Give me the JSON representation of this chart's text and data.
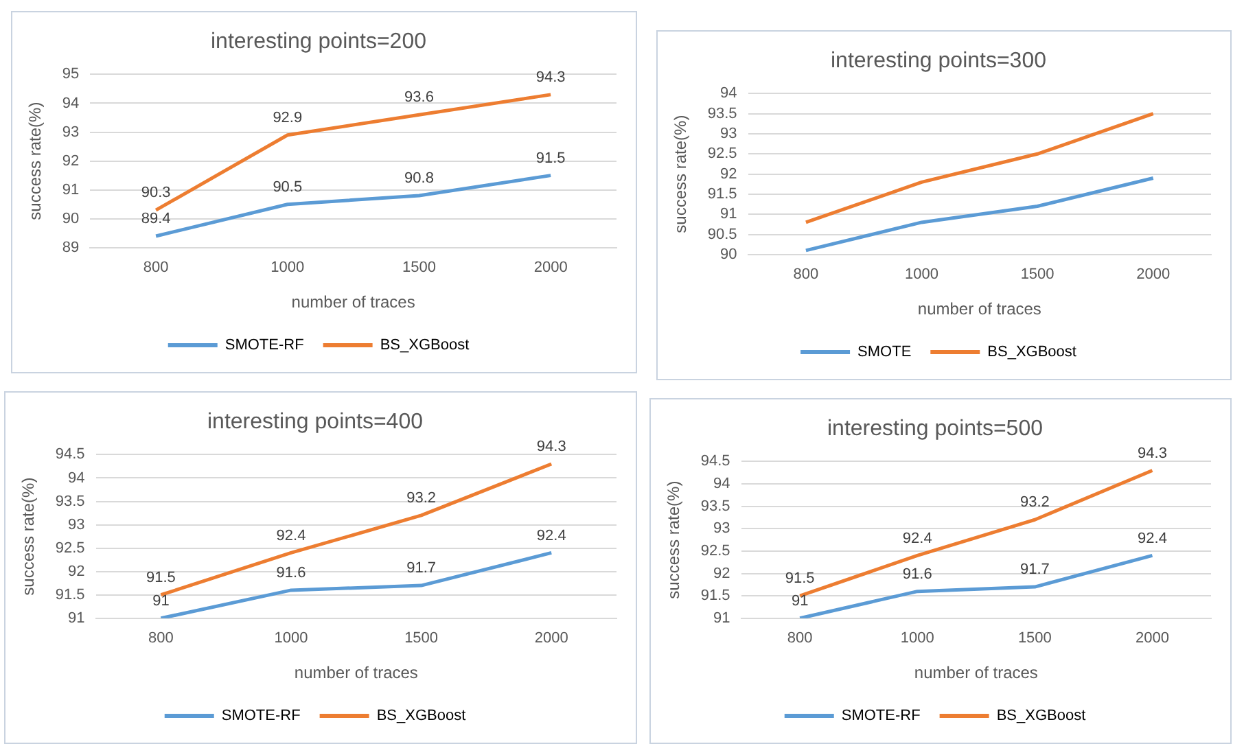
{
  "chart_data": [
    {
      "type": "line",
      "title": "interesting points=200",
      "xlabel": "number of traces",
      "ylabel": "success rate(%)",
      "categories": [
        "800",
        "1000",
        "1500",
        "2000"
      ],
      "ylim": [
        89,
        95
      ],
      "yticks": [
        89,
        90,
        91,
        92,
        93,
        94,
        95
      ],
      "grid": "y",
      "legend": "bottom",
      "marker": "none",
      "data_labels": true,
      "series": [
        {
          "name": "SMOTE-RF",
          "color": "#5b9bd5",
          "values": [
            89.4,
            90.5,
            90.8,
            91.5
          ]
        },
        {
          "name": "BS_XGBoost",
          "color": "#ed7d31",
          "values": [
            90.3,
            92.9,
            93.6,
            94.3
          ]
        }
      ]
    },
    {
      "type": "line",
      "title": "interesting points=300",
      "xlabel": "number of traces",
      "ylabel": "success rate(%)",
      "categories": [
        "800",
        "1000",
        "1500",
        "2000"
      ],
      "ylim": [
        90,
        94
      ],
      "yticks": [
        90,
        90.5,
        91,
        91.5,
        92,
        92.5,
        93,
        93.5,
        94
      ],
      "grid": "y",
      "legend": "bottom",
      "marker": "none",
      "series": [
        {
          "name": "SMOTE",
          "color": "#5b9bd5",
          "values": [
            90.1,
            90.8,
            91.2,
            91.9
          ]
        },
        {
          "name": "BS_XGBoost",
          "color": "#ed7d31",
          "values": [
            90.8,
            91.8,
            92.5,
            93.5
          ]
        }
      ]
    },
    {
      "type": "line",
      "title": "interesting points=400",
      "xlabel": "number of traces",
      "ylabel": "success rate(%)",
      "categories": [
        "800",
        "1000",
        "1500",
        "2000"
      ],
      "ylim": [
        91,
        94.5
      ],
      "yticks": [
        91,
        91.5,
        92,
        92.5,
        93,
        93.5,
        94,
        94.5
      ],
      "grid": "y",
      "legend": "bottom",
      "marker": "none",
      "data_labels": true,
      "series": [
        {
          "name": "SMOTE-RF",
          "color": "#5b9bd5",
          "values": [
            91,
            91.6,
            91.7,
            92.4
          ]
        },
        {
          "name": "BS_XGBoost",
          "color": "#ed7d31",
          "values": [
            91.5,
            92.4,
            93.2,
            94.3
          ]
        }
      ]
    },
    {
      "type": "line",
      "title": "interesting points=500",
      "xlabel": "number of traces",
      "ylabel": "success rate(%)",
      "categories": [
        "800",
        "1000",
        "1500",
        "2000"
      ],
      "ylim": [
        91,
        94.5
      ],
      "yticks": [
        91,
        91.5,
        92,
        92.5,
        93,
        93.5,
        94,
        94.5
      ],
      "grid": "y",
      "legend": "bottom",
      "marker": "none",
      "data_labels": true,
      "series": [
        {
          "name": "SMOTE-RF",
          "color": "#5b9bd5",
          "values": [
            91,
            91.6,
            91.7,
            92.4
          ]
        },
        {
          "name": "BS_XGBoost",
          "color": "#ed7d31",
          "values": [
            91.5,
            92.4,
            93.2,
            94.3
          ]
        }
      ]
    }
  ]
}
